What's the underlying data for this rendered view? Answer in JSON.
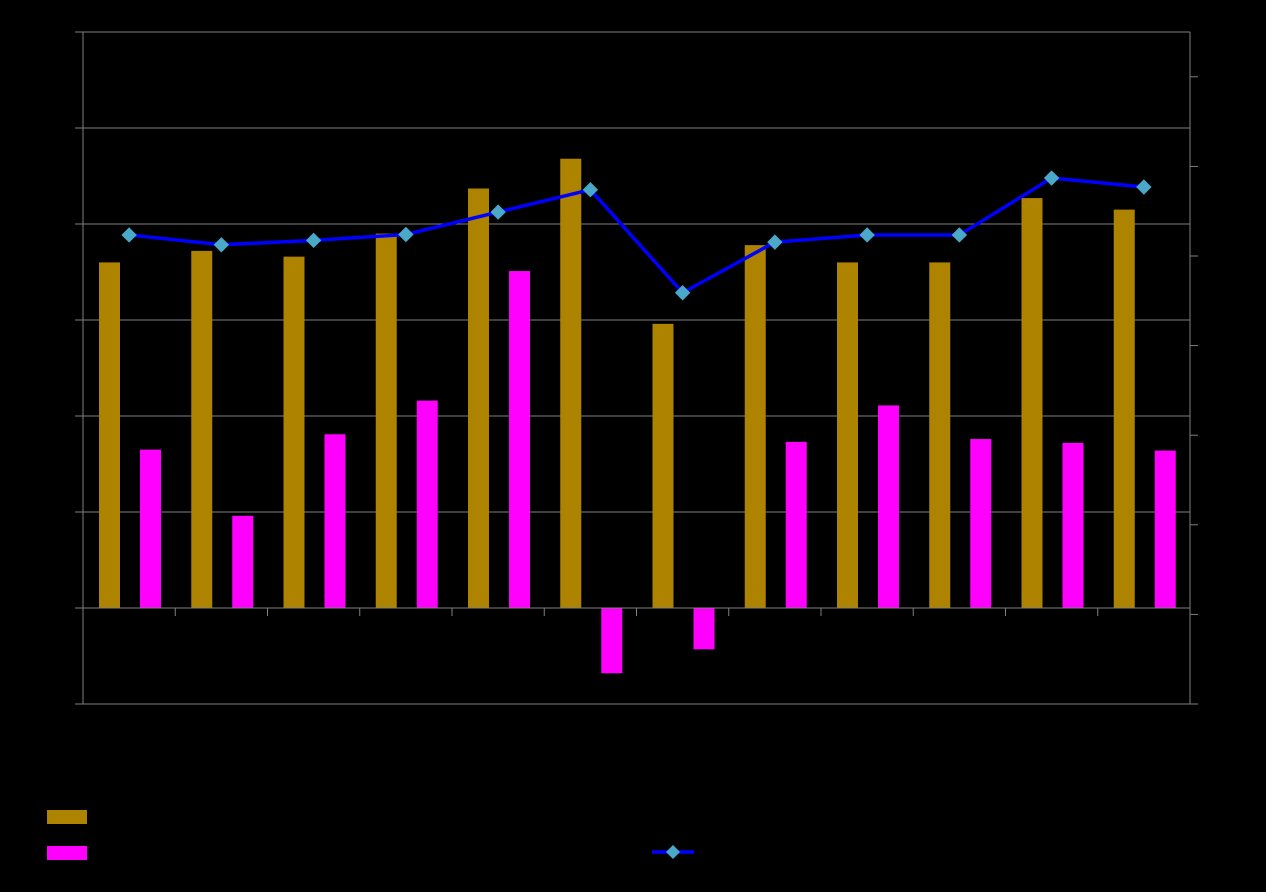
{
  "chart_data": {
    "type": "bar",
    "title": "",
    "xlabel": "",
    "ylabel": "",
    "y2label": "",
    "categories": [
      "",
      "",
      "",
      "",
      "",
      "",
      "",
      "",
      "",
      "",
      "",
      ""
    ],
    "series": [
      {
        "name": "",
        "kind": "bar",
        "axis": "left",
        "color": "#ad8300",
        "values": [
          3.6,
          3.72,
          3.66,
          3.9,
          4.37,
          4.68,
          2.96,
          3.78,
          3.6,
          3.6,
          4.27,
          4.15
        ]
      },
      {
        "name": "",
        "kind": "bar",
        "axis": "left",
        "color": "#ff00ff",
        "values": [
          1.65,
          0.96,
          1.81,
          2.16,
          3.51,
          -0.68,
          -0.43,
          1.73,
          2.11,
          1.76,
          1.72,
          1.64
        ]
      },
      {
        "name": "",
        "kind": "line",
        "axis": "right",
        "color": "#0000ff",
        "marker_color": "#4aa8c8",
        "values": [
          94.7,
          92.5,
          93.5,
          94.8,
          99.8,
          104.8,
          81.8,
          93.1,
          94.7,
          94.7,
          107.4,
          105.4
        ]
      }
    ],
    "ylim": [
      -1,
      6
    ],
    "y2lim": [
      -10,
      140
    ],
    "grid": true,
    "legend_position": "bottom"
  },
  "colors": {
    "background": "#000000",
    "axis": "#808080",
    "gridline": "#808080"
  }
}
